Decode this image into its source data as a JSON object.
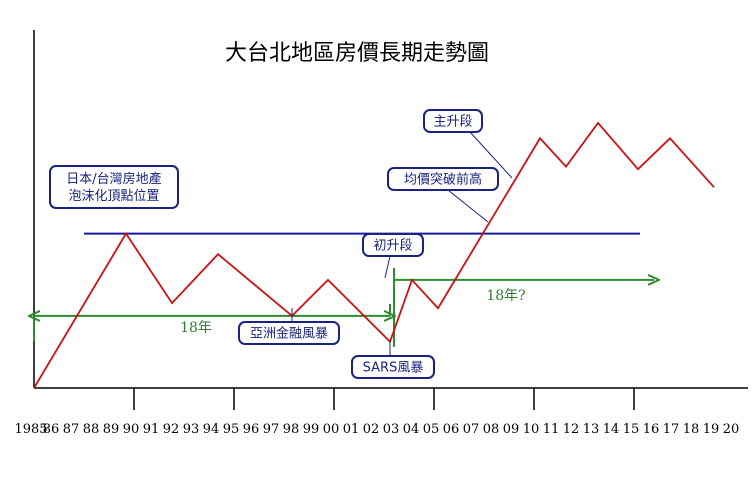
{
  "chart_data": {
    "type": "line",
    "title": "大台北地區房價長期走勢圖",
    "x_ticks": [
      "1985",
      "86",
      "87",
      "88",
      "89",
      "90",
      "91",
      "92",
      "93",
      "94",
      "95",
      "96",
      "97",
      "98",
      "99",
      "00",
      "01",
      "02",
      "03",
      "04",
      "05",
      "06",
      "07",
      "08",
      "09",
      "10",
      "11",
      "12",
      "13",
      "14",
      "15",
      "16",
      "17",
      "18",
      "19",
      "20"
    ],
    "series": [
      {
        "color": "#cc1111",
        "points": [
          {
            "x": 1985,
            "y": 0
          },
          {
            "x": 1989.6,
            "y": 60
          },
          {
            "x": 1991.9,
            "y": 33
          },
          {
            "x": 1994.2,
            "y": 52
          },
          {
            "x": 1997.9,
            "y": 28
          },
          {
            "x": 1999.7,
            "y": 42
          },
          {
            "x": 2002.8,
            "y": 18
          },
          {
            "x": 2003.9,
            "y": 42
          },
          {
            "x": 2005.2,
            "y": 31
          },
          {
            "x": 2010.3,
            "y": 97
          },
          {
            "x": 2011.6,
            "y": 86
          },
          {
            "x": 2013.2,
            "y": 103
          },
          {
            "x": 2015.2,
            "y": 85
          },
          {
            "x": 2016.8,
            "y": 97
          },
          {
            "x": 2019.0,
            "y": 78
          }
        ]
      }
    ],
    "reference_line": {
      "y": 60,
      "x_start": 1987.5,
      "x_end": 2015.3,
      "color": "#1a1aa0"
    },
    "spans": [
      {
        "label": "18年",
        "x_start": 1985,
        "x_end": 2002.8,
        "y": 28,
        "color": "#2e8b2e"
      },
      {
        "label": "18年?",
        "x_start": 2003.0,
        "x_end": 2016.0,
        "y": 42,
        "color": "#2e8b2e"
      }
    ],
    "annotations": [
      {
        "lines": [
          "日本/台灣房地產",
          "泡沫化頂點位置"
        ]
      },
      {
        "lines": [
          "亞洲金融風暴"
        ]
      },
      {
        "lines": [
          "初升段"
        ]
      },
      {
        "lines": [
          "均價突破前高"
        ]
      },
      {
        "lines": [
          "主升段"
        ]
      },
      {
        "lines": [
          "SARS風暴"
        ]
      }
    ],
    "xlim": [
      1985,
      2020
    ],
    "ylim": [
      0,
      115
    ],
    "xlabel": "",
    "ylabel": "",
    "grid": false
  }
}
